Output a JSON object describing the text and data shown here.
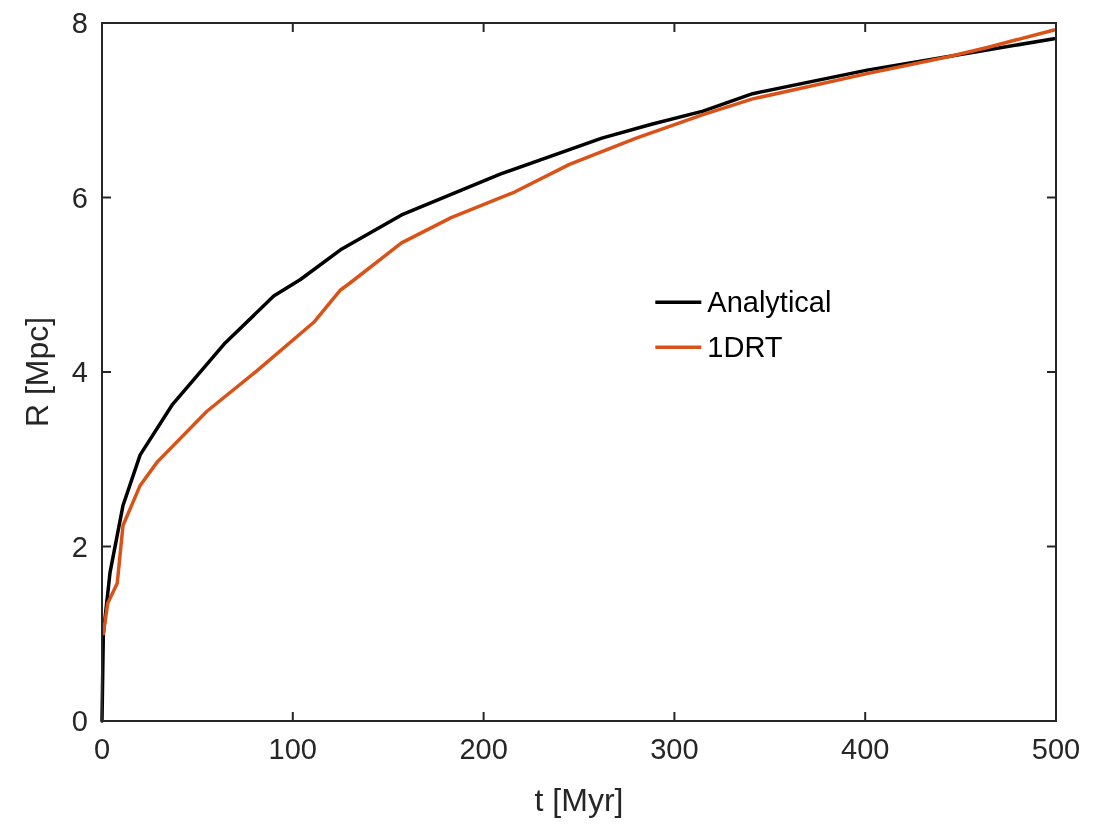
{
  "chart_data": {
    "type": "line",
    "xlabel": "t [Myr]",
    "ylabel": "R [Mpc]",
    "xlim": [
      0,
      500
    ],
    "ylim": [
      0,
      8
    ],
    "xticks": [
      0,
      100,
      200,
      300,
      400,
      500
    ],
    "yticks": [
      0,
      2,
      4,
      6,
      8
    ],
    "grid": false,
    "legend": "right",
    "line_style": "solid",
    "marker": "none",
    "series": [
      {
        "name": "Analytical",
        "color": "#000000",
        "x": [
          0,
          0.7,
          4.2,
          11,
          20,
          37,
          64,
          90,
          104,
          125,
          157,
          209,
          262,
          288,
          315,
          341,
          401,
          453,
          499
        ],
        "values": [
          0,
          1.0,
          1.7,
          2.47,
          3.05,
          3.63,
          4.32,
          4.87,
          5.06,
          5.4,
          5.8,
          6.27,
          6.68,
          6.84,
          6.99,
          7.19,
          7.46,
          7.65,
          7.82
        ]
      },
      {
        "name": "1DRT",
        "color": "#d95319",
        "x": [
          0.7,
          3,
          8,
          11,
          20,
          29,
          55,
          81,
          111,
          125,
          130,
          157,
          183,
          216,
          245,
          280,
          315,
          341,
          401,
          443,
          464,
          499
        ],
        "values": [
          1.0,
          1.35,
          1.58,
          2.24,
          2.7,
          2.97,
          3.55,
          4.01,
          4.57,
          4.94,
          5.02,
          5.48,
          5.77,
          6.06,
          6.38,
          6.68,
          6.95,
          7.13,
          7.42,
          7.61,
          7.72,
          7.92
        ]
      }
    ]
  }
}
